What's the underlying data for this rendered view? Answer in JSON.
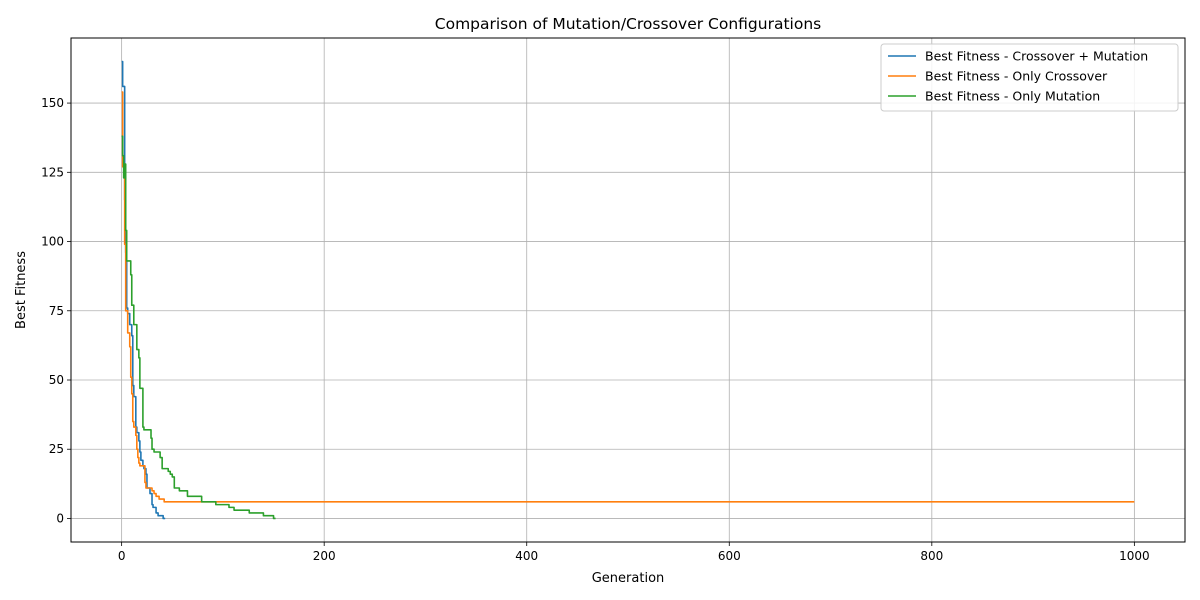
{
  "chart_data": {
    "type": "line",
    "title": "Comparison of Mutation/Crossover Configurations",
    "xlabel": "Generation",
    "ylabel": "Best Fitness",
    "xlim": [
      -50,
      1050
    ],
    "ylim": [
      -8.5,
      173.5
    ],
    "xticks": [
      0,
      200,
      400,
      600,
      800,
      1000
    ],
    "yticks": [
      0,
      25,
      50,
      75,
      100,
      125,
      150
    ],
    "grid": true,
    "legend_position": "top-right",
    "series": [
      {
        "name": "Best Fitness - Crossover + Mutation",
        "color": "#1f77b4",
        "points": [
          [
            0,
            165
          ],
          [
            1,
            165
          ],
          [
            1,
            156
          ],
          [
            3,
            156
          ],
          [
            3,
            115
          ],
          [
            4,
            115
          ],
          [
            4,
            96
          ],
          [
            5,
            96
          ],
          [
            5,
            76
          ],
          [
            6,
            76
          ],
          [
            6,
            74
          ],
          [
            8,
            74
          ],
          [
            8,
            70
          ],
          [
            10,
            70
          ],
          [
            10,
            66
          ],
          [
            11,
            66
          ],
          [
            11,
            48
          ],
          [
            12,
            48
          ],
          [
            12,
            44
          ],
          [
            14,
            44
          ],
          [
            14,
            33
          ],
          [
            15,
            33
          ],
          [
            15,
            31
          ],
          [
            17,
            31
          ],
          [
            17,
            28
          ],
          [
            18,
            28
          ],
          [
            18,
            24
          ],
          [
            19,
            24
          ],
          [
            19,
            21
          ],
          [
            21,
            21
          ],
          [
            21,
            19
          ],
          [
            22,
            19
          ],
          [
            22,
            18
          ],
          [
            24,
            18
          ],
          [
            24,
            16
          ],
          [
            25,
            16
          ],
          [
            25,
            11
          ],
          [
            28,
            11
          ],
          [
            28,
            9
          ],
          [
            30,
            9
          ],
          [
            30,
            5
          ],
          [
            31,
            5
          ],
          [
            31,
            4
          ],
          [
            34,
            4
          ],
          [
            34,
            2
          ],
          [
            36,
            2
          ],
          [
            36,
            1
          ],
          [
            41,
            1
          ],
          [
            41,
            0
          ],
          [
            43,
            0
          ]
        ]
      },
      {
        "name": "Best Fitness - Only Crossover",
        "color": "#ff7f0e",
        "points": [
          [
            0,
            154
          ],
          [
            1,
            154
          ],
          [
            1,
            127
          ],
          [
            3,
            127
          ],
          [
            3,
            99
          ],
          [
            4,
            99
          ],
          [
            4,
            75
          ],
          [
            6,
            75
          ],
          [
            6,
            67
          ],
          [
            8,
            67
          ],
          [
            8,
            62
          ],
          [
            9,
            62
          ],
          [
            9,
            51
          ],
          [
            10,
            51
          ],
          [
            10,
            45
          ],
          [
            11,
            45
          ],
          [
            11,
            35
          ],
          [
            12,
            35
          ],
          [
            12,
            33
          ],
          [
            14,
            33
          ],
          [
            14,
            30
          ],
          [
            15,
            30
          ],
          [
            15,
            25
          ],
          [
            16,
            25
          ],
          [
            16,
            22
          ],
          [
            17,
            22
          ],
          [
            17,
            20
          ],
          [
            18,
            20
          ],
          [
            18,
            19
          ],
          [
            23,
            19
          ],
          [
            23,
            13
          ],
          [
            24,
            13
          ],
          [
            24,
            11
          ],
          [
            30,
            11
          ],
          [
            30,
            10
          ],
          [
            32,
            10
          ],
          [
            32,
            9
          ],
          [
            34,
            9
          ],
          [
            34,
            8
          ],
          [
            37,
            8
          ],
          [
            37,
            7
          ],
          [
            42,
            7
          ],
          [
            42,
            6
          ],
          [
            1000,
            6
          ]
        ]
      },
      {
        "name": "Best Fitness - Only Mutation",
        "color": "#2ca02c",
        "points": [
          [
            0,
            138
          ],
          [
            1,
            138
          ],
          [
            1,
            131
          ],
          [
            2,
            131
          ],
          [
            2,
            123
          ],
          [
            3,
            123
          ],
          [
            3,
            128
          ],
          [
            4,
            128
          ],
          [
            4,
            104
          ],
          [
            5,
            104
          ],
          [
            5,
            93
          ],
          [
            9,
            93
          ],
          [
            9,
            88
          ],
          [
            10,
            88
          ],
          [
            10,
            77
          ],
          [
            12,
            77
          ],
          [
            12,
            70
          ],
          [
            15,
            70
          ],
          [
            15,
            61
          ],
          [
            17,
            61
          ],
          [
            17,
            58
          ],
          [
            18,
            58
          ],
          [
            18,
            47
          ],
          [
            21,
            47
          ],
          [
            21,
            33
          ],
          [
            22,
            33
          ],
          [
            22,
            32
          ],
          [
            29,
            32
          ],
          [
            29,
            29
          ],
          [
            30,
            29
          ],
          [
            30,
            25
          ],
          [
            32,
            25
          ],
          [
            32,
            24
          ],
          [
            38,
            24
          ],
          [
            38,
            22
          ],
          [
            40,
            22
          ],
          [
            40,
            18
          ],
          [
            46,
            18
          ],
          [
            46,
            17
          ],
          [
            48,
            17
          ],
          [
            48,
            16
          ],
          [
            50,
            16
          ],
          [
            50,
            15
          ],
          [
            52,
            15
          ],
          [
            52,
            11
          ],
          [
            57,
            11
          ],
          [
            57,
            10
          ],
          [
            65,
            10
          ],
          [
            65,
            8
          ],
          [
            79,
            8
          ],
          [
            79,
            6
          ],
          [
            93,
            6
          ],
          [
            93,
            5
          ],
          [
            106,
            5
          ],
          [
            106,
            4
          ],
          [
            111,
            4
          ],
          [
            111,
            3
          ],
          [
            126,
            3
          ],
          [
            126,
            2
          ],
          [
            140,
            2
          ],
          [
            140,
            1
          ],
          [
            150,
            1
          ],
          [
            150,
            0
          ],
          [
            152,
            0
          ]
        ]
      }
    ]
  }
}
